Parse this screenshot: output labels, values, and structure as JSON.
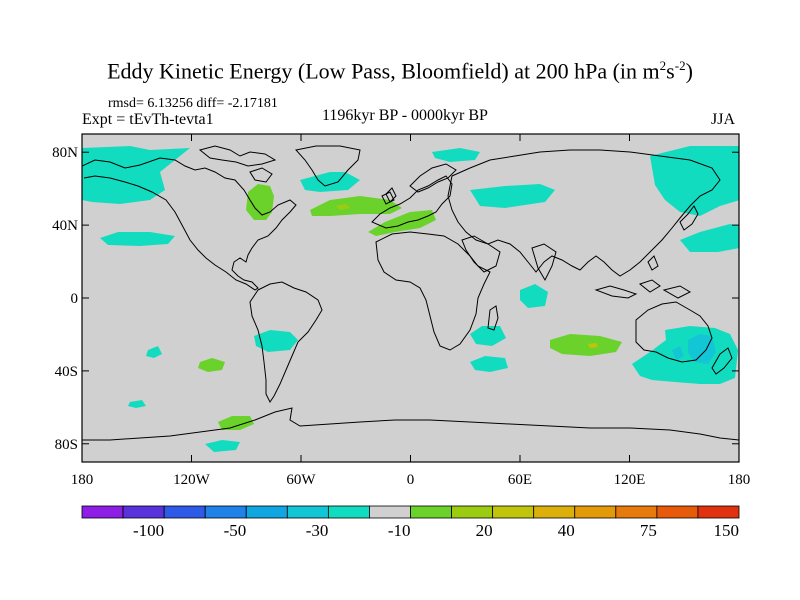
{
  "title": {
    "main": "Eddy Kinetic Energy (Low Pass, Bloomfield) at 200 hPa (in m",
    "sup1": "2",
    "s": "s",
    "sup2": "-2",
    "close": ")"
  },
  "stats": "rmsd= 6.13256 diff= -2.17181",
  "expt": "Expt = tEvTh-tevta1",
  "period": "1196kyr BP - 0000kyr BP",
  "season": "JJA",
  "axes": {
    "x_ticks": [
      {
        "lon": -180,
        "label": "180"
      },
      {
        "lon": -120,
        "label": "120W"
      },
      {
        "lon": -60,
        "label": "60W"
      },
      {
        "lon": 0,
        "label": "0"
      },
      {
        "lon": 60,
        "label": "60E"
      },
      {
        "lon": 120,
        "label": "120E"
      },
      {
        "lon": 180,
        "label": "180"
      }
    ],
    "y_ticks": [
      {
        "lat": 80,
        "label": "80N"
      },
      {
        "lat": 40,
        "label": "40N"
      },
      {
        "lat": 0,
        "label": "0"
      },
      {
        "lat": -40,
        "label": "40S"
      },
      {
        "lat": -80,
        "label": "80S"
      }
    ],
    "lon_range": [
      -180,
      180
    ],
    "lat_range": [
      -90,
      90
    ]
  },
  "colorbar": {
    "colors": [
      "#8c1ee6",
      "#5a32dc",
      "#2d5ae6",
      "#1e82e6",
      "#10a6e1",
      "#12c6d6",
      "#12dcc0",
      "#d0d0d0",
      "#6ad22a",
      "#9ccc12",
      "#c0c40a",
      "#dcb00a",
      "#e29a0a",
      "#e67a0a",
      "#e65a0a",
      "#e0320e"
    ],
    "labels": [
      {
        "after_box": 2,
        "text": "-100"
      },
      {
        "after_box": 4,
        "text": "-50"
      },
      {
        "after_box": 6,
        "text": "-30"
      },
      {
        "after_box": 8,
        "text": "-10"
      },
      {
        "after_box": 10,
        "text": "20"
      },
      {
        "after_box": 12,
        "text": "40"
      },
      {
        "after_box": 14,
        "text": "75"
      },
      {
        "after_box": 16,
        "text": "150"
      }
    ]
  },
  "colors": {
    "background_field": "#d0d0d0",
    "negative_patch": "#12dcc0",
    "negative_patch_darker": "#12c6d6",
    "positive_patch": "#6ad22a",
    "coastline": "#000000"
  }
}
